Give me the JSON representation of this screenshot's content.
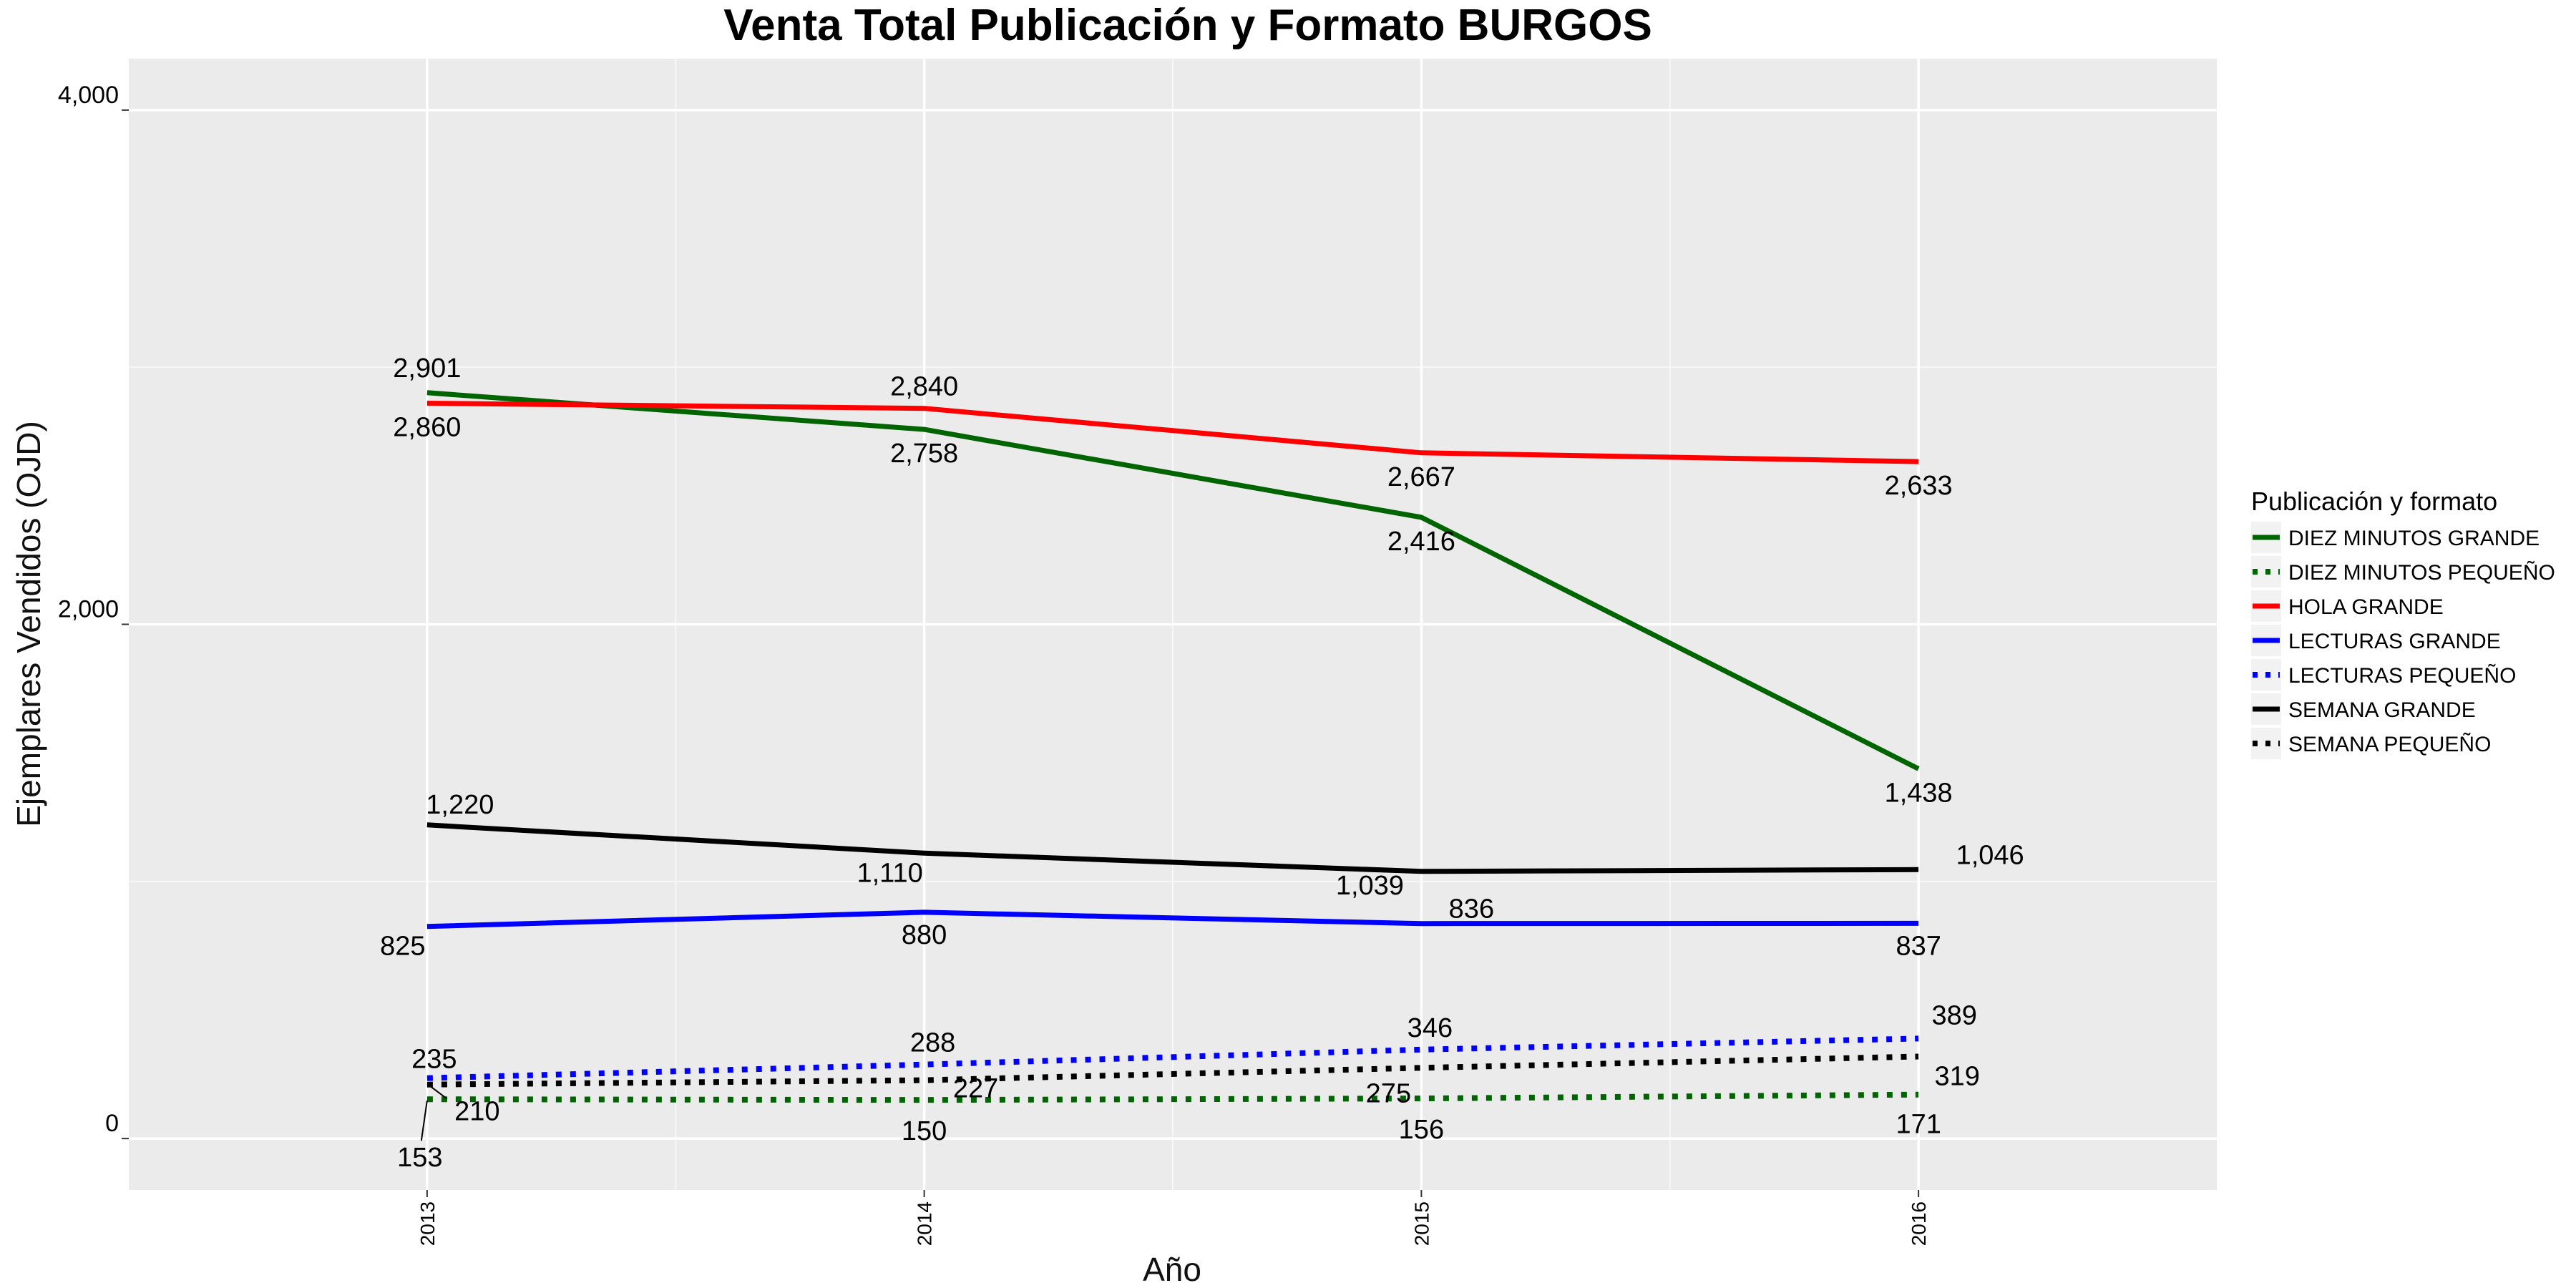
{
  "chart_data": {
    "type": "line",
    "title": "Venta Total Publicación y Formato  BURGOS",
    "xlabel": "Año",
    "ylabel": "Ejemplares Vendidos (OJD)",
    "x": [
      2013,
      2014,
      2015,
      2016
    ],
    "x_tick_labels": [
      "2013",
      "2014",
      "2015",
      "2016"
    ],
    "ylim": [
      -200,
      4200
    ],
    "y_ticks": [
      0,
      2000,
      4000
    ],
    "y_tick_labels": [
      "0",
      "2,000",
      "4,000"
    ],
    "grid": true,
    "legend": {
      "title": "Publicación y formato",
      "position": "right"
    },
    "series": [
      {
        "name": "DIEZ MINUTOS GRANDE",
        "color": "#006400",
        "dash": "solid",
        "values": [
          2901,
          2758,
          2416,
          1438
        ],
        "labels": [
          "2,901",
          "2,758",
          "2,416",
          "1,438"
        ]
      },
      {
        "name": "DIEZ MINUTOS PEQUEÑO",
        "color": "#006400",
        "dash": "dotted",
        "values": [
          153,
          150,
          156,
          171
        ],
        "labels": [
          "153",
          "150",
          "156",
          "171"
        ]
      },
      {
        "name": "HOLA GRANDE",
        "color": "#ff0000",
        "dash": "solid",
        "values": [
          2860,
          2840,
          2667,
          2633
        ],
        "labels": [
          "2,860",
          "2,840",
          "2,667",
          "2,633"
        ]
      },
      {
        "name": "LECTURAS GRANDE",
        "color": "#0000ff",
        "dash": "solid",
        "values": [
          825,
          880,
          836,
          837
        ],
        "labels": [
          "825",
          "880",
          "836",
          "837"
        ]
      },
      {
        "name": "LECTURAS PEQUEÑO",
        "color": "#0000ff",
        "dash": "dotted",
        "values": [
          235,
          288,
          346,
          389
        ],
        "labels": [
          "235",
          "288",
          "346",
          "389"
        ]
      },
      {
        "name": "SEMANA GRANDE",
        "color": "#000000",
        "dash": "solid",
        "values": [
          1220,
          1110,
          1039,
          1046
        ],
        "labels": [
          "1,220",
          "1,110",
          "1,039",
          "1,046"
        ]
      },
      {
        "name": "SEMANA PEQUEÑO",
        "color": "#000000",
        "dash": "dotted",
        "values": [
          210,
          227,
          275,
          319
        ],
        "labels": [
          "210",
          "227",
          "275",
          "319"
        ]
      }
    ]
  }
}
